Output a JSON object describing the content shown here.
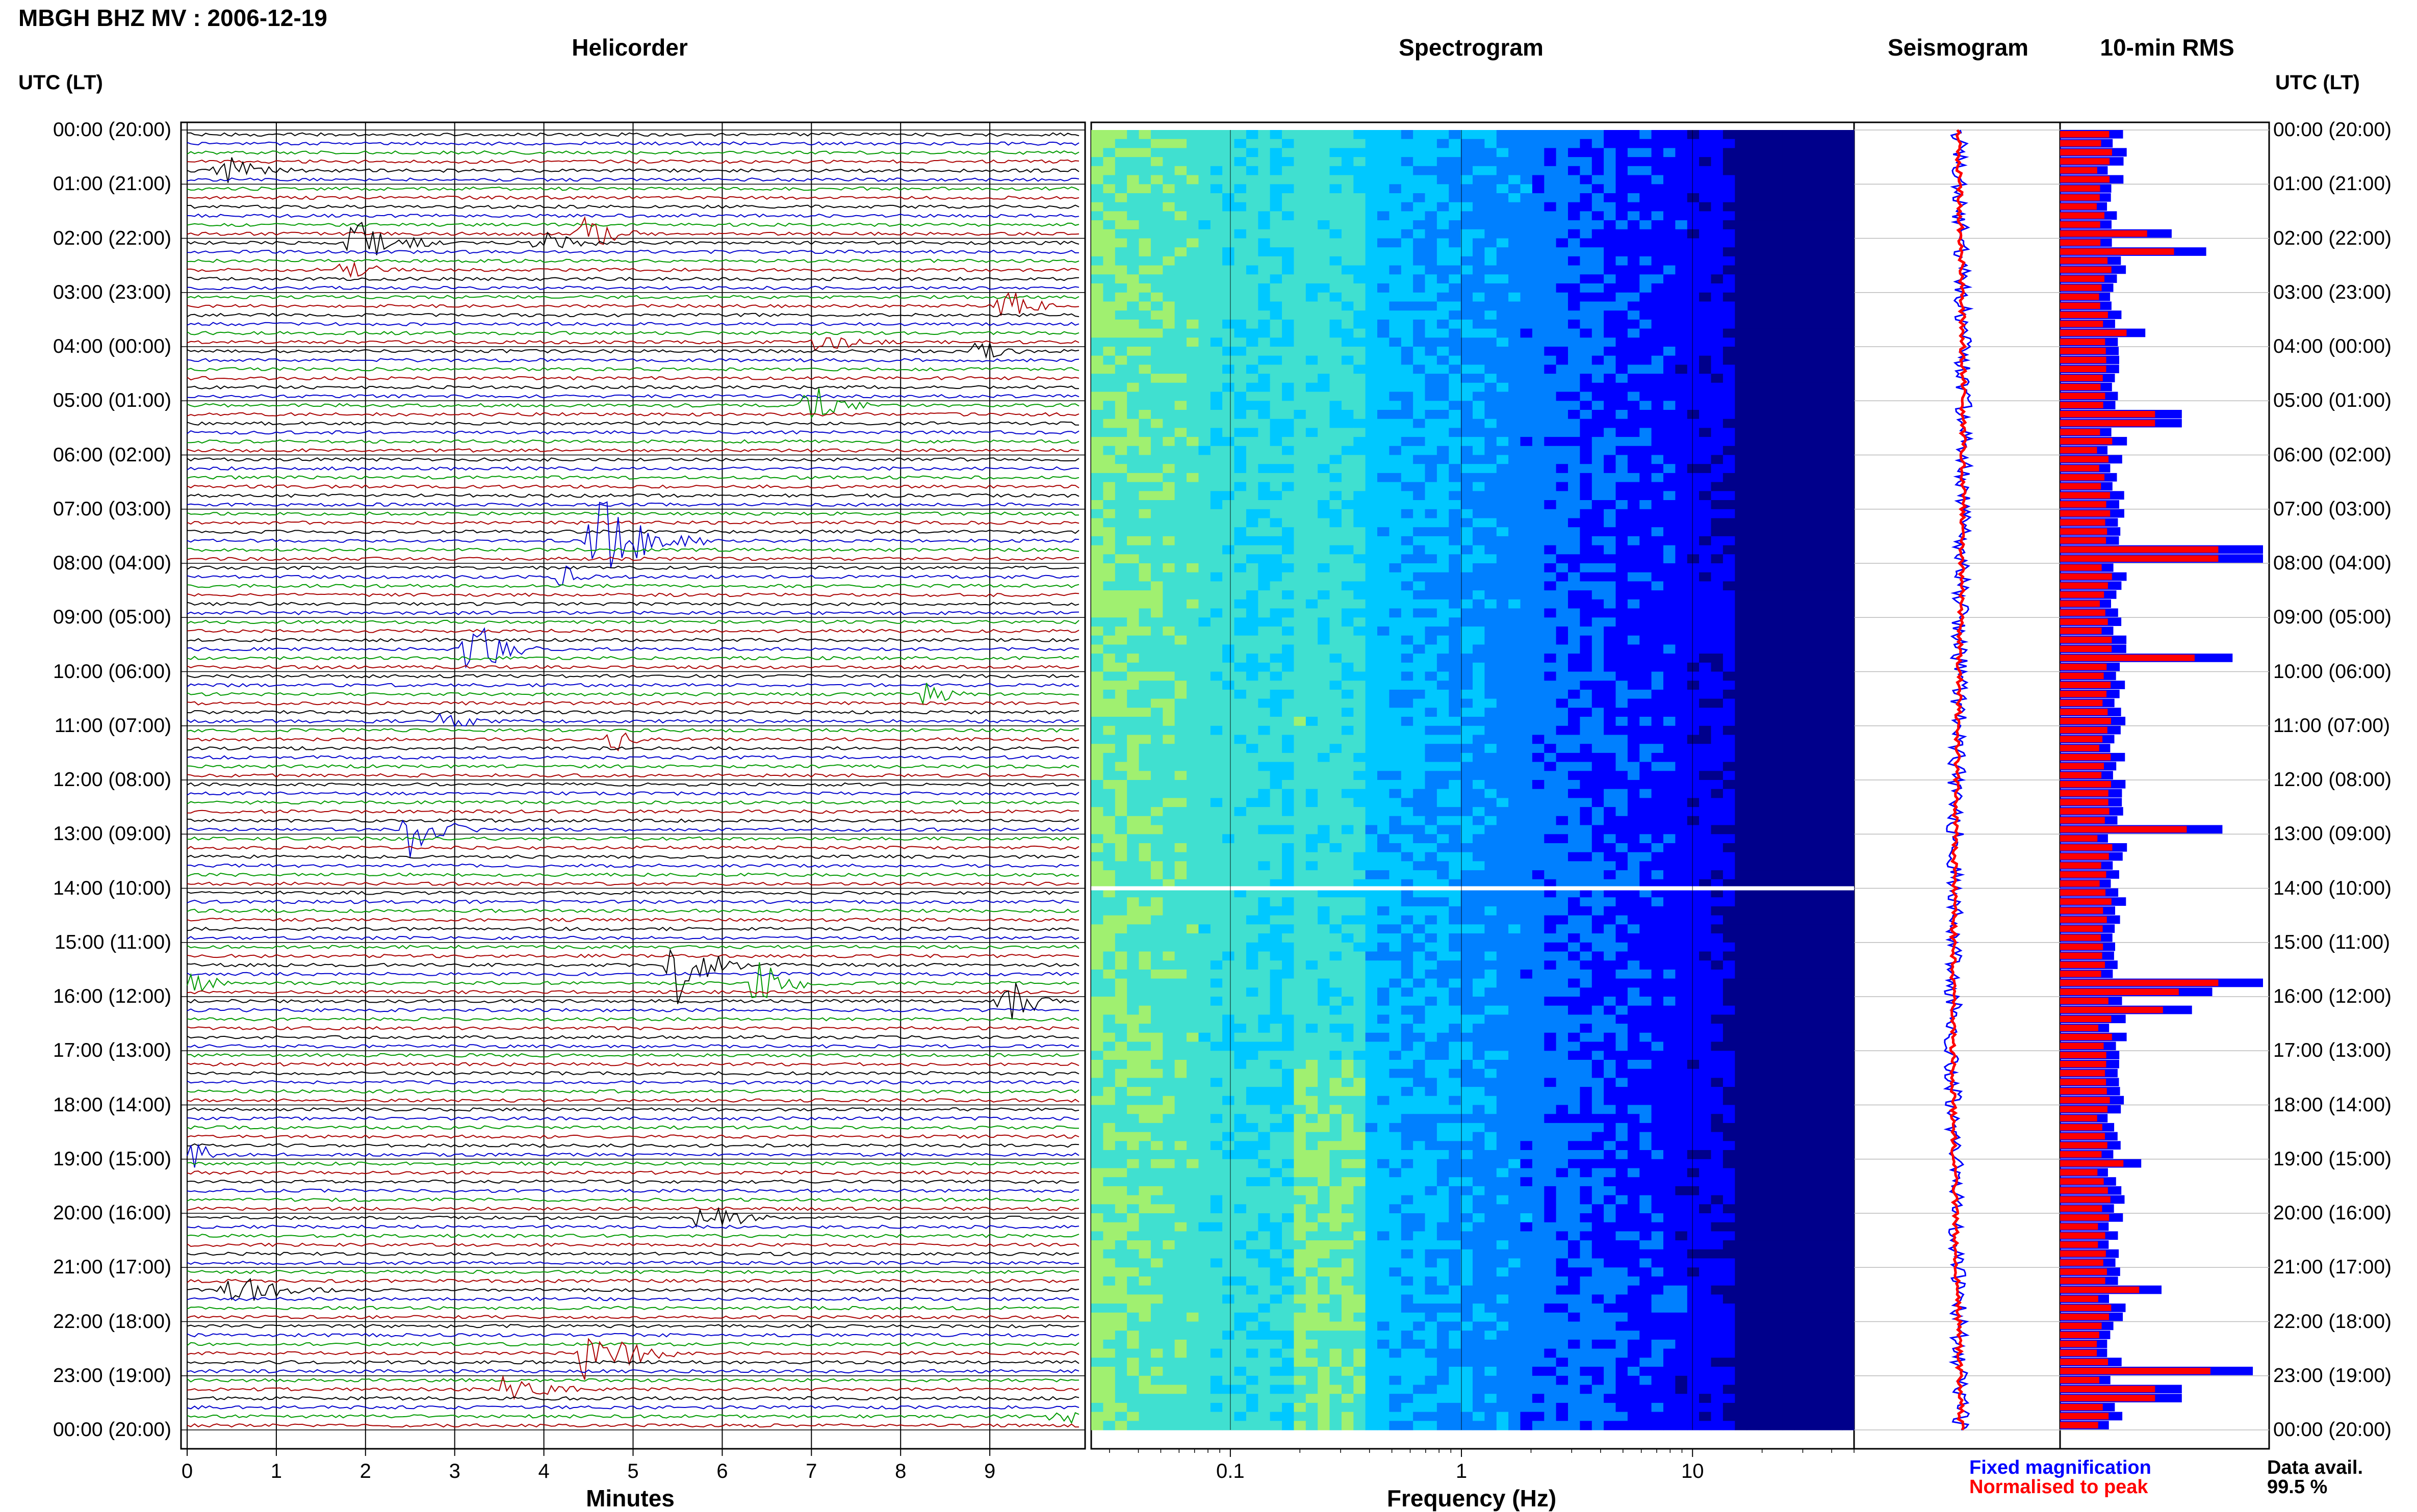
{
  "header": {
    "station_title": "MBGH BHZ MV : 2006-12-19",
    "panels": [
      "Helicorder",
      "Spectrogram",
      "Seismogram",
      "10-min RMS"
    ],
    "left_axis_head": "UTC (LT)",
    "right_axis_head": "UTC (LT)"
  },
  "footer": {
    "helicorder_xlabel": "Minutes",
    "spectrogram_xlabel": "Frequency (Hz)",
    "legend_fixed": "Fixed magnification",
    "legend_normalised": "Normalised to peak",
    "data_avail_label": "Data avail.",
    "data_avail_value": "99.5 %"
  },
  "colors": {
    "trace_cycle": [
      "#000000",
      "#0000cc",
      "#009900",
      "#aa0000"
    ],
    "fixed": "#0000ff",
    "normalised": "#ff0000"
  },
  "chart_data": [
    {
      "type": "line",
      "name": "helicorder",
      "title": "Helicorder",
      "xlabel": "Minutes",
      "xlim": [
        0,
        10
      ],
      "x_ticks": [
        "0",
        "1",
        "2",
        "3",
        "4",
        "5",
        "6",
        "7",
        "8",
        "9"
      ],
      "time_labels": [
        "00:00 (20:00)",
        "01:00 (21:00)",
        "02:00 (22:00)",
        "03:00 (23:00)",
        "04:00 (00:00)",
        "05:00 (01:00)",
        "06:00 (02:00)",
        "07:00 (03:00)",
        "08:00 (04:00)",
        "09:00 (05:00)",
        "10:00 (06:00)",
        "11:00 (07:00)",
        "12:00 (08:00)",
        "13:00 (09:00)",
        "14:00 (10:00)",
        "15:00 (11:00)",
        "16:00 (12:00)",
        "17:00 (13:00)",
        "18:00 (14:00)",
        "19:00 (15:00)",
        "20:00 (16:00)",
        "21:00 (17:00)",
        "22:00 (18:00)",
        "23:00 (19:00)",
        "00:00 (20:00)"
      ],
      "events": [
        {
          "hour": 0.75,
          "minute": 0.4,
          "amp": 0.9,
          "dur": 0.8
        },
        {
          "hour": 1.85,
          "minute": 4.5,
          "amp": 1.0,
          "dur": 0.6
        },
        {
          "hour": 2.05,
          "minute": 1.9,
          "amp": 1.2,
          "dur": 1.0
        },
        {
          "hour": 2.05,
          "minute": 4.0,
          "amp": 0.9,
          "dur": 0.6
        },
        {
          "hour": 2.6,
          "minute": 1.8,
          "amp": 0.7,
          "dur": 0.6
        },
        {
          "hour": 3.3,
          "minute": 9.2,
          "amp": 1.0,
          "dur": 0.6
        },
        {
          "hour": 3.85,
          "minute": 7.1,
          "amp": 0.6,
          "dur": 0.8
        },
        {
          "hour": 4.0,
          "minute": 8.9,
          "amp": 0.6,
          "dur": 0.5
        },
        {
          "hour": 5.15,
          "minute": 7.0,
          "amp": 1.2,
          "dur": 0.7
        },
        {
          "hour": 7.6,
          "minute": 4.6,
          "amp": 2.4,
          "dur": 1.2
        },
        {
          "hour": 8.3,
          "minute": 4.2,
          "amp": 0.7,
          "dur": 0.4
        },
        {
          "hour": 9.55,
          "minute": 3.2,
          "amp": 1.6,
          "dur": 0.8
        },
        {
          "hour": 10.45,
          "minute": 8.3,
          "amp": 0.8,
          "dur": 0.5
        },
        {
          "hour": 10.85,
          "minute": 2.9,
          "amp": 0.6,
          "dur": 0.5
        },
        {
          "hour": 11.3,
          "minute": 4.8,
          "amp": 0.6,
          "dur": 0.4
        },
        {
          "hour": 12.85,
          "minute": 2.5,
          "amp": 1.4,
          "dur": 0.8
        },
        {
          "hour": 15.4,
          "minute": 5.5,
          "amp": 2.0,
          "dur": 0.8
        },
        {
          "hour": 15.75,
          "minute": 0.1,
          "amp": 0.8,
          "dur": 0.4
        },
        {
          "hour": 15.8,
          "minute": 6.4,
          "amp": 1.2,
          "dur": 0.8
        },
        {
          "hour": 16.1,
          "minute": 9.2,
          "amp": 1.3,
          "dur": 0.7
        },
        {
          "hour": 18.85,
          "minute": 0.1,
          "amp": 0.7,
          "dur": 0.4
        },
        {
          "hour": 20.15,
          "minute": 5.8,
          "amp": 0.9,
          "dur": 0.8
        },
        {
          "hour": 21.35,
          "minute": 0.5,
          "amp": 0.8,
          "dur": 1.2
        },
        {
          "hour": 22.65,
          "minute": 4.5,
          "amp": 2.0,
          "dur": 1.0
        },
        {
          "hour": 23.2,
          "minute": 3.6,
          "amp": 1.2,
          "dur": 0.8
        },
        {
          "hour": 23.75,
          "minute": 9.8,
          "amp": 0.9,
          "dur": 0.4
        }
      ]
    },
    {
      "type": "heatmap",
      "name": "spectrogram",
      "title": "Spectrogram",
      "xlabel": "Frequency (Hz)",
      "x_scale": "log",
      "xlim": [
        0.025,
        50
      ],
      "x_ticks": [
        "0.1",
        "1",
        "10"
      ],
      "colormap": [
        "#00008b",
        "#0000ff",
        "#0080ff",
        "#00c8ff",
        "#40e0d0",
        "#a0f070",
        "#ffff00"
      ],
      "dominant_band_hz": [
        0.2,
        0.4
      ],
      "data_gap_hour": 14.0
    },
    {
      "type": "line",
      "name": "seismogram",
      "title": "Seismogram",
      "series": [
        {
          "name": "Fixed magnification",
          "color": "#0000ff"
        },
        {
          "name": "Normalised to peak",
          "color": "#ff0000"
        }
      ]
    },
    {
      "type": "bar",
      "name": "rms",
      "title": "10-min RMS",
      "orientation": "horizontal",
      "bins_per_hour": 6,
      "series": [
        {
          "name": "Fixed magnification",
          "color": "#0000ff"
        },
        {
          "name": "Normalised to peak",
          "color": "#ff0000"
        }
      ],
      "spikes": [
        {
          "hour": 1.9,
          "value": 0.55
        },
        {
          "hour": 2.2,
          "value": 0.72
        },
        {
          "hour": 3.6,
          "value": 0.42
        },
        {
          "hour": 5.25,
          "value": 0.6
        },
        {
          "hour": 7.75,
          "value": 1.0
        },
        {
          "hour": 9.7,
          "value": 0.85
        },
        {
          "hour": 12.9,
          "value": 0.8
        },
        {
          "hour": 15.6,
          "value": 1.0
        },
        {
          "hour": 15.85,
          "value": 0.75
        },
        {
          "hour": 16.2,
          "value": 0.65
        },
        {
          "hour": 19.0,
          "value": 0.4
        },
        {
          "hour": 21.3,
          "value": 0.5
        },
        {
          "hour": 22.8,
          "value": 0.95
        },
        {
          "hour": 23.25,
          "value": 0.6
        }
      ],
      "baseline": 0.28
    }
  ]
}
